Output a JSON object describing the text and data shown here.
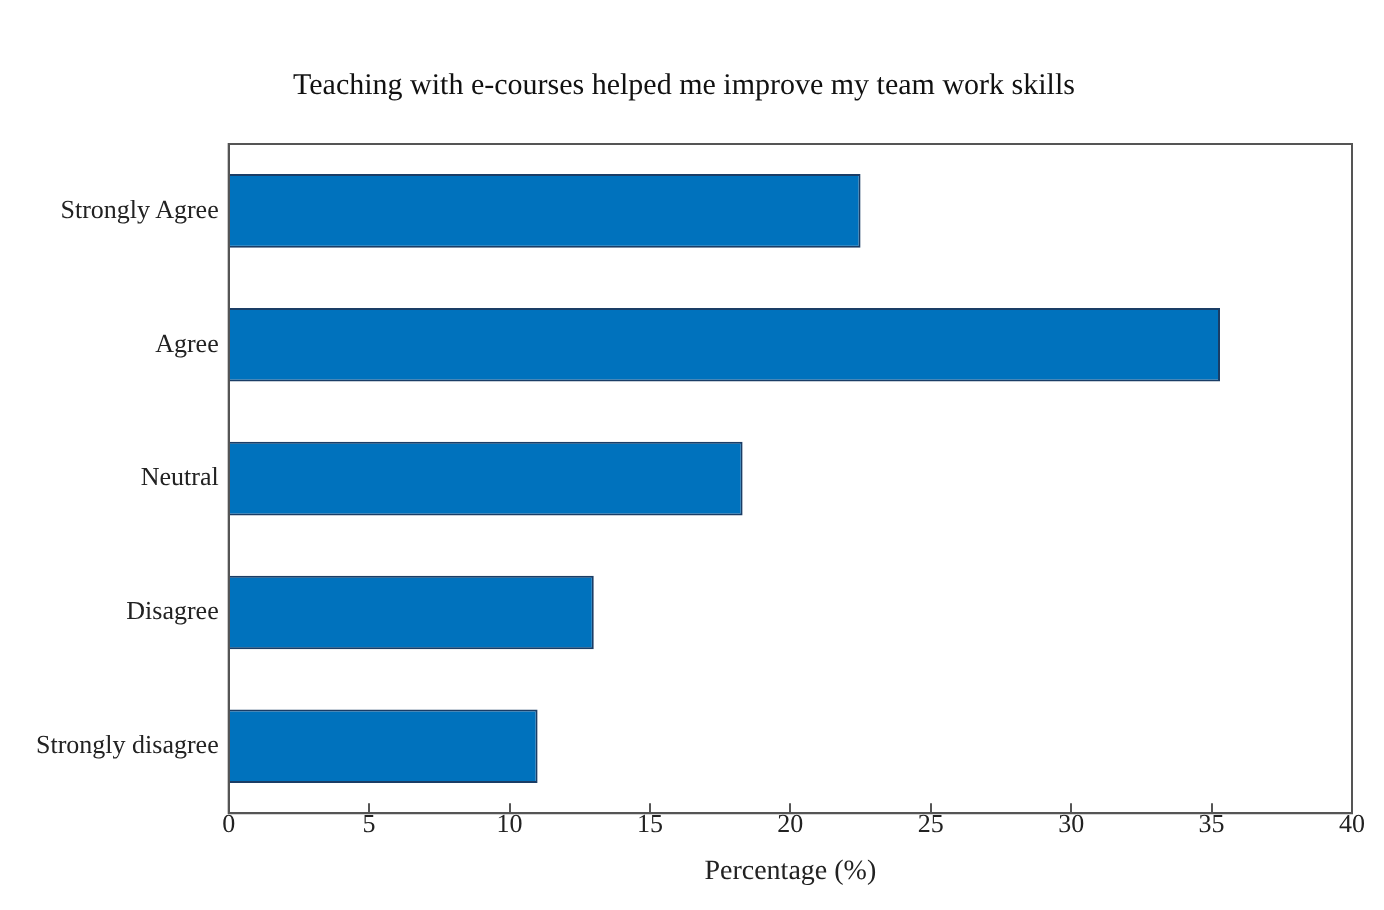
{
  "chart_data": {
    "type": "bar",
    "orientation": "horizontal",
    "title": "Teaching with e-courses helped me improve my team work skills",
    "xlabel": "Percentage (%)",
    "categories": [
      "Strongly Agree",
      "Agree",
      "Neutral",
      "Disagree",
      "Strongly disagree"
    ],
    "values": [
      22.5,
      35.3,
      18.3,
      13.0,
      11.0
    ],
    "color": "#0072bd",
    "xlim": [
      0,
      40
    ],
    "xticks": [
      0,
      5,
      10,
      15,
      20,
      25,
      30,
      35,
      40
    ],
    "grid": false,
    "legend": false
  }
}
